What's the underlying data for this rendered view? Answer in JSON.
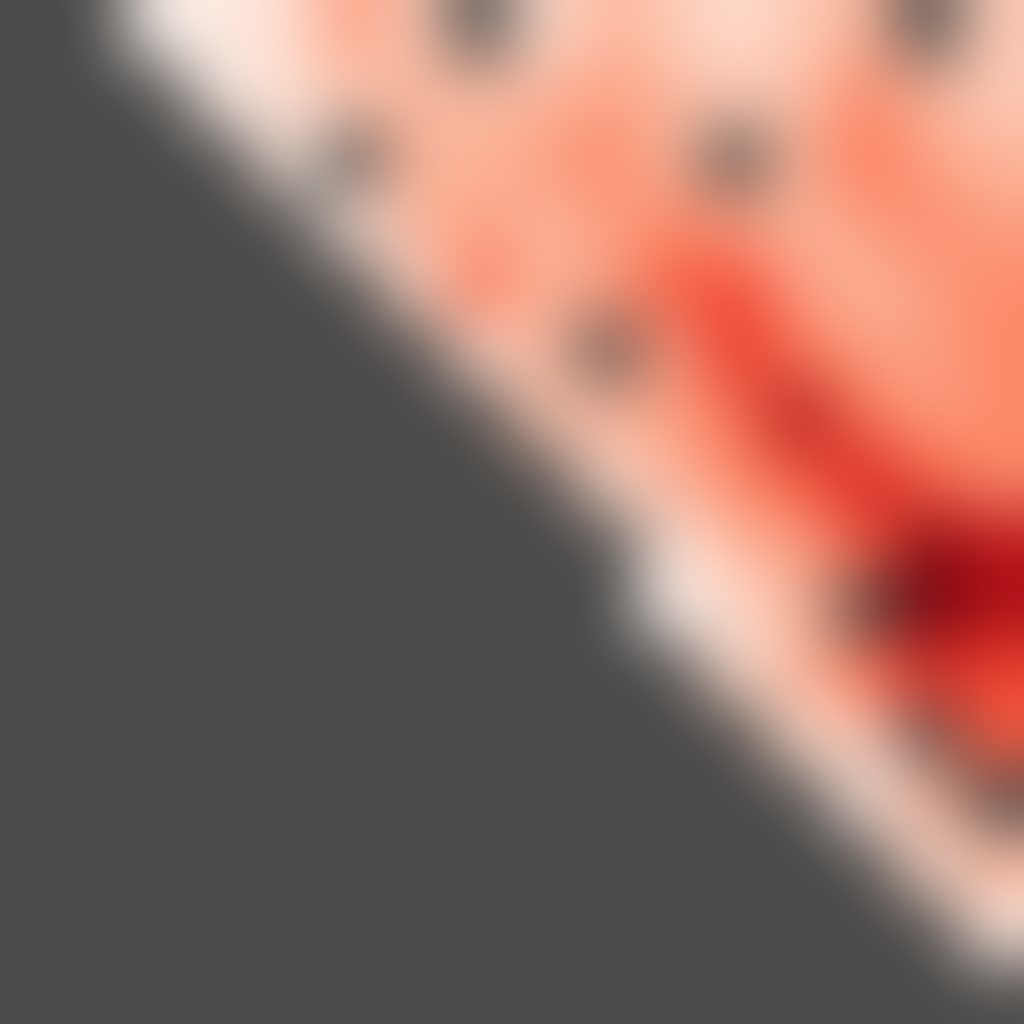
{
  "chart_data": {
    "type": "heatmap",
    "tick_labels": false,
    "color": "#4b4a49",
    "cells": [
      [
        null,
        null,
        0.1,
        0.15,
        0.2,
        0.35,
        0.25,
        null,
        0.2,
        0.3,
        0.25,
        0.2,
        0.25,
        0.3,
        null,
        0.25
      ],
      [
        null,
        null,
        null,
        0.12,
        0.2,
        0.25,
        0.3,
        0.28,
        0.3,
        0.35,
        0.3,
        0.25,
        0.28,
        0.4,
        0.3,
        0.25
      ],
      [
        null,
        null,
        null,
        null,
        0.15,
        null,
        0.3,
        0.3,
        0.35,
        0.4,
        0.3,
        null,
        0.3,
        0.45,
        0.35,
        0.3
      ],
      [
        null,
        null,
        null,
        null,
        null,
        0.15,
        0.3,
        0.35,
        0.3,
        0.35,
        0.4,
        0.35,
        0.3,
        0.35,
        0.4,
        0.35
      ],
      [
        null,
        null,
        null,
        null,
        null,
        null,
        0.2,
        0.45,
        0.3,
        0.35,
        0.5,
        0.55,
        0.35,
        0.3,
        0.35,
        0.4
      ],
      [
        null,
        null,
        null,
        null,
        null,
        null,
        null,
        0.2,
        0.3,
        null,
        0.35,
        0.6,
        0.45,
        0.35,
        0.35,
        0.4
      ],
      [
        null,
        null,
        null,
        null,
        null,
        null,
        null,
        null,
        0.25,
        0.3,
        0.35,
        0.45,
        0.75,
        0.45,
        0.35,
        0.4
      ],
      [
        null,
        null,
        null,
        null,
        null,
        null,
        null,
        null,
        null,
        0.2,
        0.3,
        0.4,
        0.5,
        0.65,
        0.5,
        0.4
      ],
      [
        null,
        null,
        null,
        null,
        null,
        null,
        null,
        null,
        null,
        null,
        0.15,
        0.3,
        0.35,
        0.5,
        0.8,
        0.7
      ],
      [
        null,
        null,
        null,
        null,
        null,
        null,
        null,
        null,
        null,
        null,
        0.1,
        0.2,
        0.3,
        null,
        0.85,
        0.75
      ],
      [
        null,
        null,
        null,
        null,
        null,
        null,
        null,
        null,
        null,
        null,
        null,
        0.2,
        0.3,
        0.45,
        0.6,
        0.55
      ],
      [
        null,
        null,
        null,
        null,
        null,
        null,
        null,
        null,
        null,
        null,
        null,
        null,
        0.2,
        0.25,
        null,
        0.5
      ],
      [
        null,
        null,
        null,
        null,
        null,
        null,
        null,
        null,
        null,
        null,
        null,
        null,
        null,
        0.15,
        0.3,
        null
      ],
      [
        null,
        null,
        null,
        null,
        null,
        null,
        null,
        null,
        null,
        null,
        null,
        null,
        null,
        null,
        0.2,
        0.3
      ],
      [
        null,
        null,
        null,
        null,
        null,
        null,
        null,
        null,
        null,
        null,
        null,
        null,
        null,
        null,
        null,
        0.15
      ],
      [
        null,
        null,
        null,
        null,
        null,
        null,
        null,
        null,
        null,
        null,
        null,
        null,
        null,
        null,
        null,
        null
      ]
    ]
  }
}
